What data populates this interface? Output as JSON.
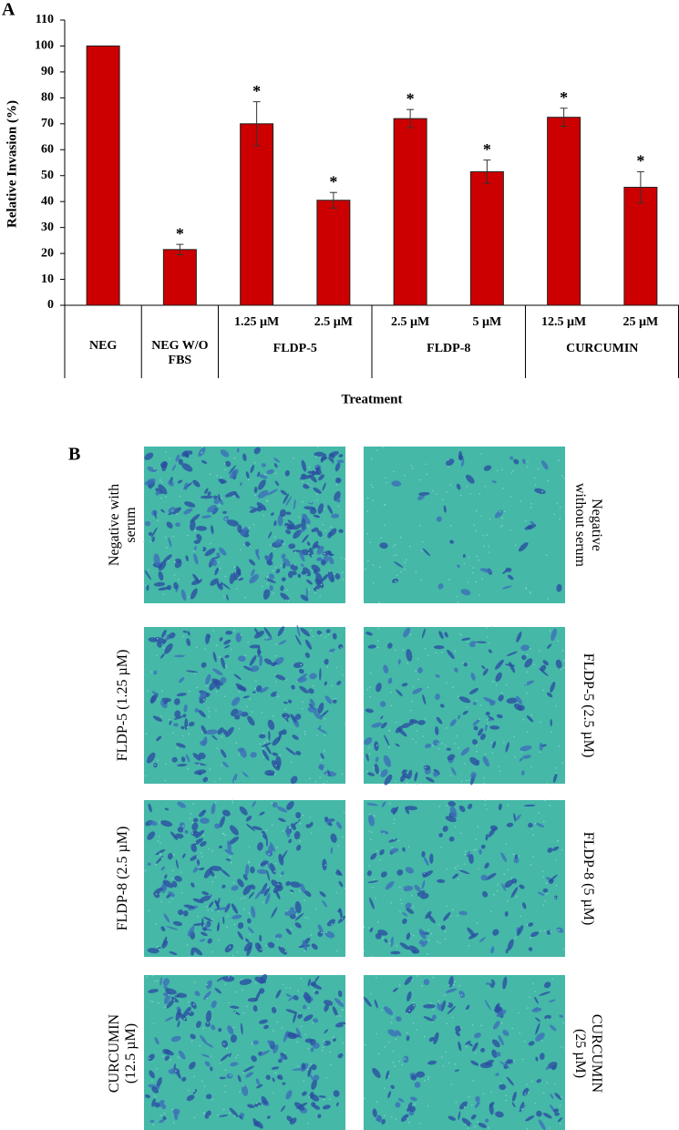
{
  "chart_data": {
    "type": "bar",
    "panel_label": "A",
    "ylabel": "Relative Invasion (%)",
    "xlabel": "Treatment",
    "categories": [
      "NEG",
      "NEG W/O FBS",
      "1.25 µM",
      "2.5 µM",
      "2.5 µM",
      "5 µM",
      "12.5 µM",
      "25 µM"
    ],
    "groups": [
      {
        "name": "FLDP-5",
        "categories": [
          2,
          3
        ]
      },
      {
        "name": "FLDP-8",
        "categories": [
          4,
          5
        ]
      },
      {
        "name": "CURCUMIN",
        "categories": [
          6,
          7
        ]
      }
    ],
    "values": [
      100,
      21.5,
      70,
      40.5,
      72,
      51.5,
      72.5,
      45.5
    ],
    "errors": [
      null,
      2,
      8.5,
      3,
      3.5,
      4.5,
      3.5,
      6
    ],
    "significance": [
      null,
      "*",
      "*",
      "*",
      "*",
      "*",
      "*",
      "*"
    ],
    "color": "#cc0000",
    "ylim": [
      0,
      110
    ],
    "yticks": [
      0,
      10,
      20,
      30,
      40,
      50,
      60,
      70,
      80,
      90,
      100,
      110
    ]
  },
  "panel_b": {
    "label": "B",
    "images": [
      {
        "caption": "Negative with serum"
      },
      {
        "caption": "Negative without serum"
      },
      {
        "caption": "FLDP-5 (1.25 µM)"
      },
      {
        "caption": "FLDP-5 (2.5 µM)"
      },
      {
        "caption": "FLDP-8 (2.5 µM)"
      },
      {
        "caption": "FLDP-8 (5 µM)"
      },
      {
        "caption": "CURCUMIN (12.5 µM)"
      },
      {
        "caption": "CURCUMIN (25 µM)"
      }
    ]
  }
}
